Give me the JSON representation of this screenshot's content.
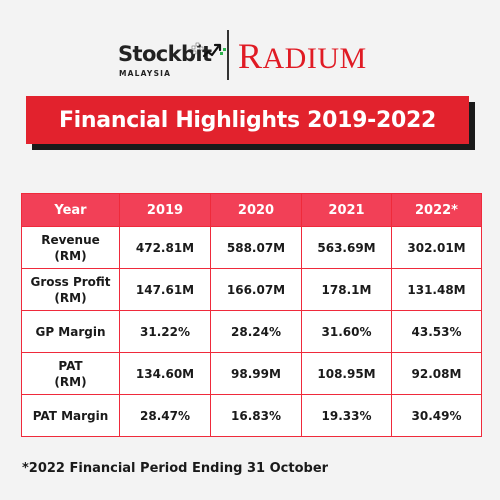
{
  "header": {
    "stockbit_logo": {
      "name": "Stockbit",
      "sub": "MALAYSIA",
      "icon": "stockbit-chart-mark-icon"
    },
    "radium_logo": {
      "first_letter": "R",
      "rest": "ADIUM",
      "color": "#e01b24"
    }
  },
  "banner": {
    "title": "Financial Highlights 2019-2022",
    "color": "#e2222d"
  },
  "table": {
    "header_color": "#f24057",
    "border_color": "#ef2a3b",
    "columns": [
      "Year",
      "2019",
      "2020",
      "2021",
      "2022*"
    ],
    "rows": [
      {
        "label_line1": "Revenue",
        "label_line2": "(RM)",
        "values": [
          "472.81M",
          "588.07M",
          "563.69M",
          "302.01M"
        ]
      },
      {
        "label_line1": "Gross Profit",
        "label_line2": "(RM)",
        "values": [
          "147.61M",
          "166.07M",
          "178.1M",
          "131.48M"
        ]
      },
      {
        "label_line1": "GP Margin",
        "label_line2": "",
        "values": [
          "31.22%",
          "28.24%",
          "31.60%",
          "43.53%"
        ]
      },
      {
        "label_line1": "PAT",
        "label_line2": "(RM)",
        "values": [
          "134.60M",
          "98.99M",
          "108.95M",
          "92.08M"
        ]
      },
      {
        "label_line1": "PAT Margin",
        "label_line2": "",
        "values": [
          "28.47%",
          "16.83%",
          "19.33%",
          "30.49%"
        ]
      }
    ]
  },
  "footnote": "*2022 Financial Period Ending 31 October"
}
